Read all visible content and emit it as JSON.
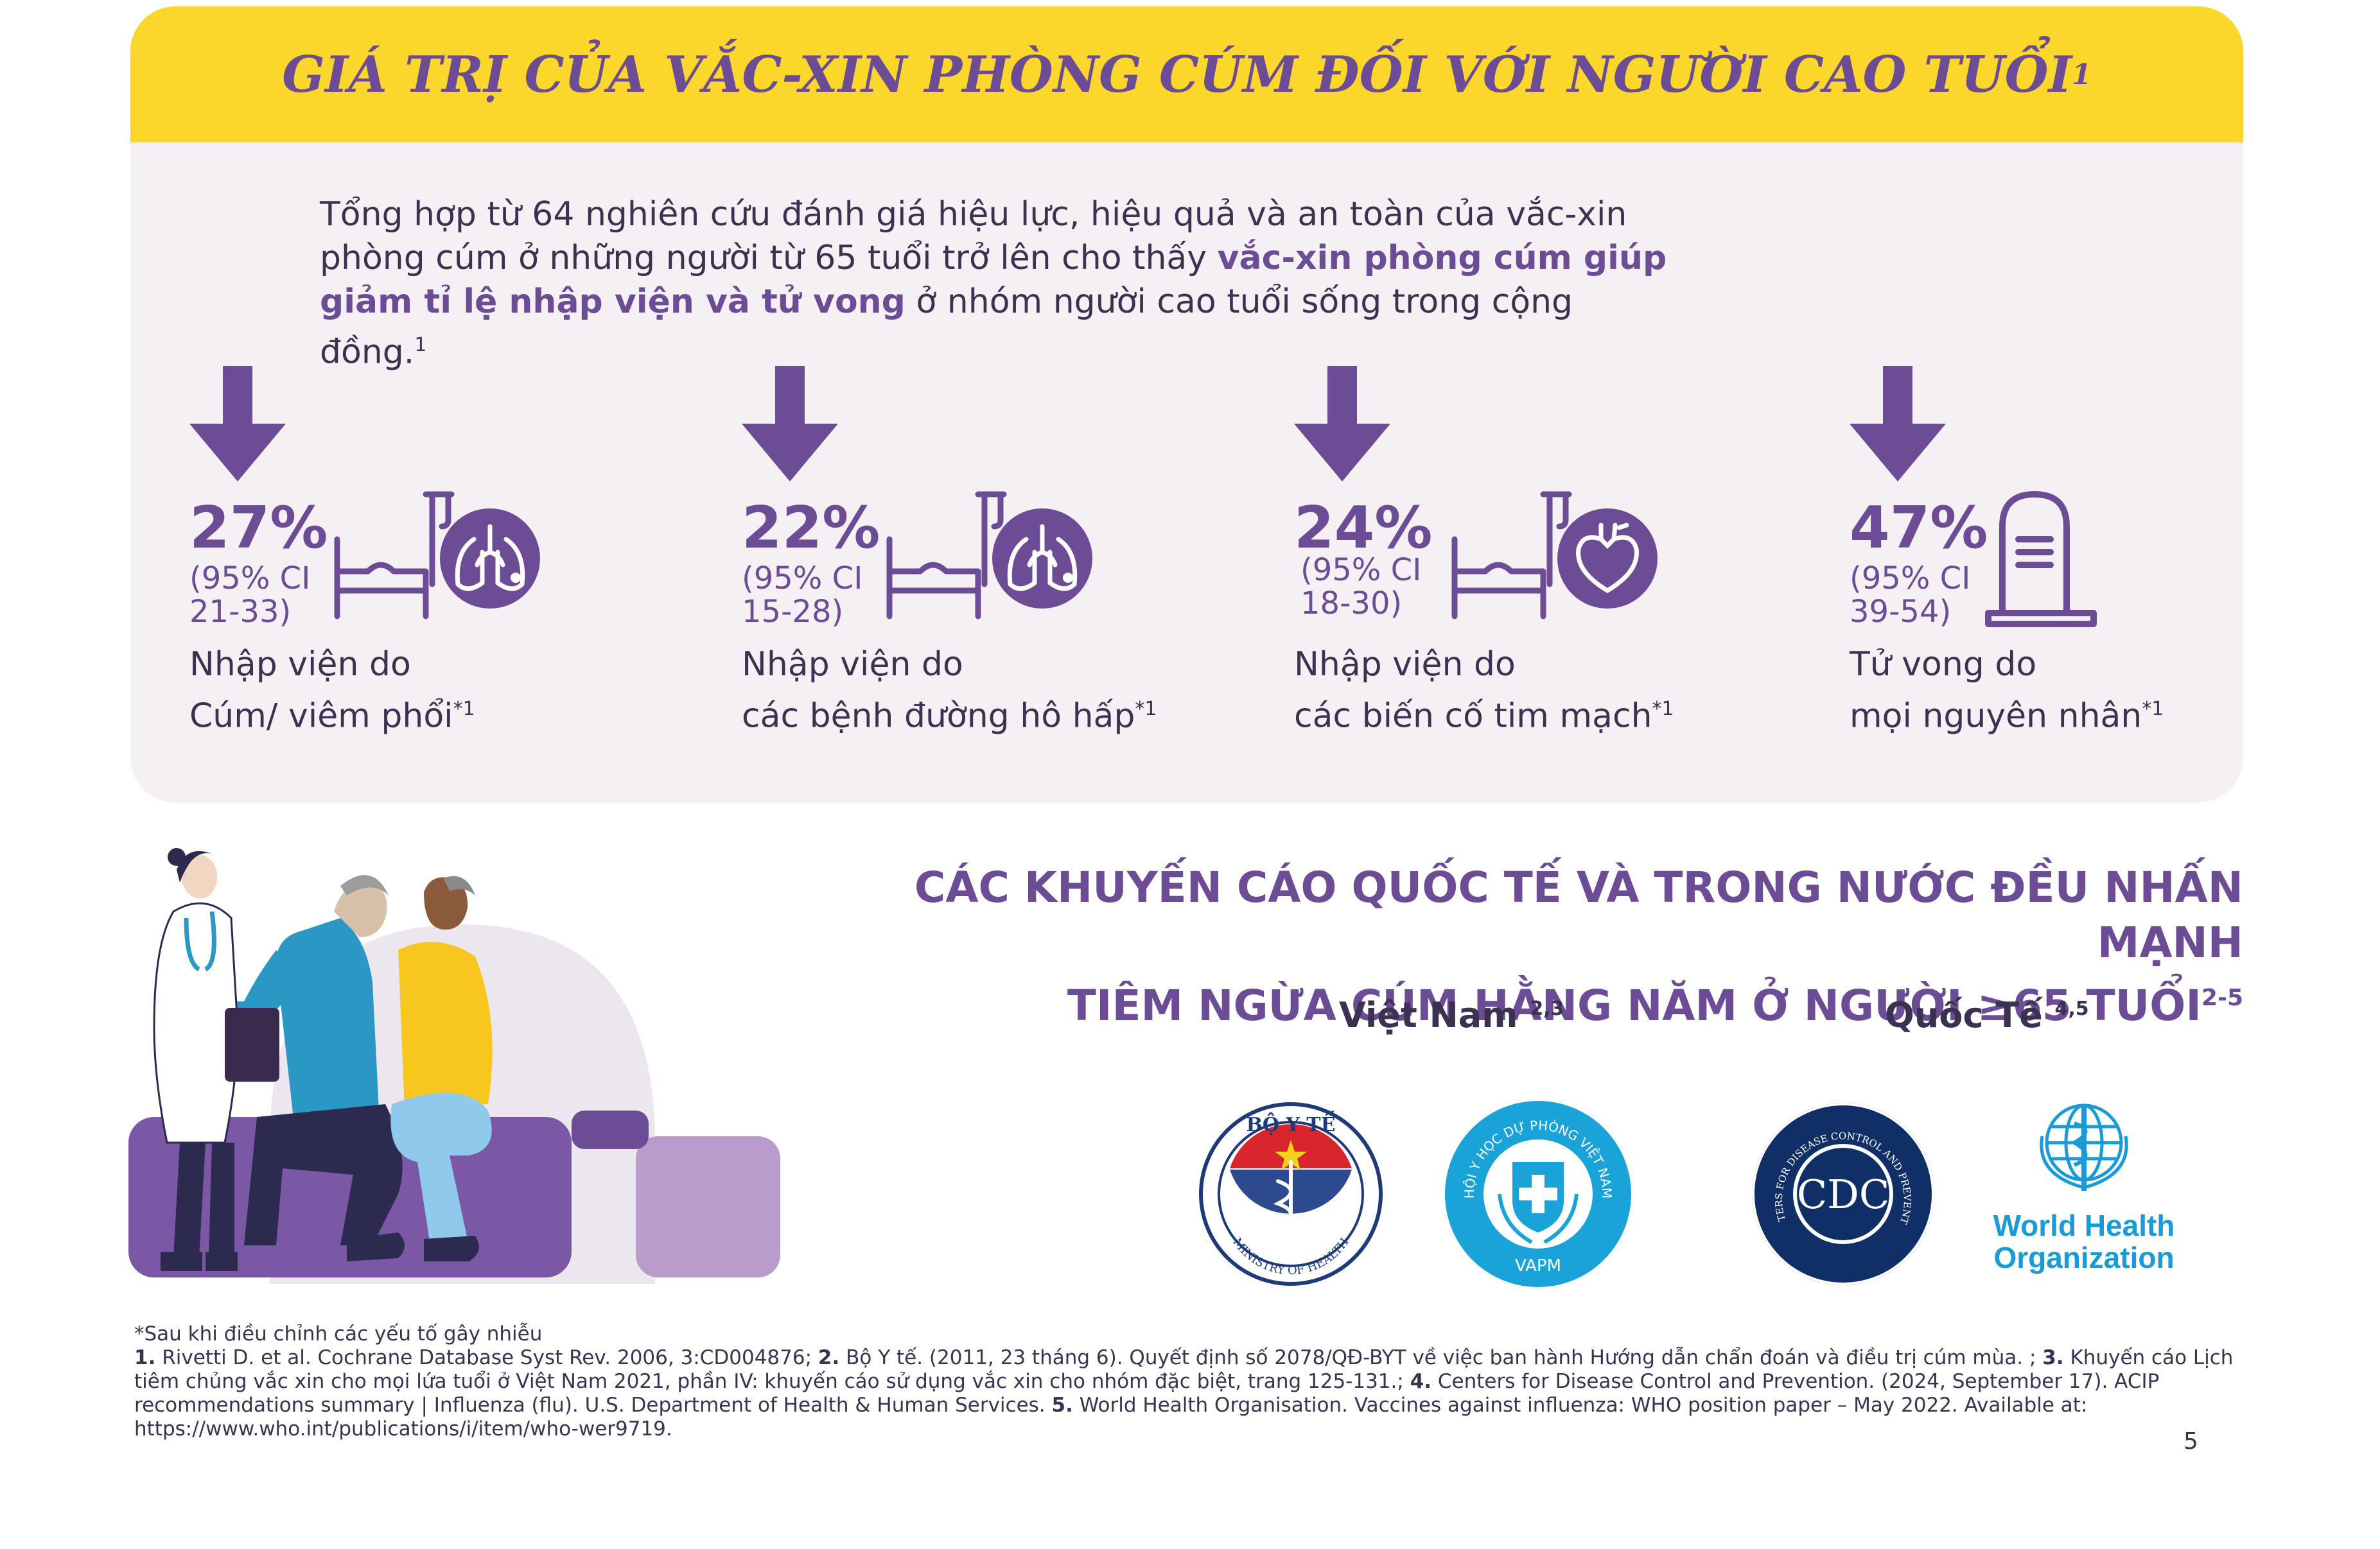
{
  "header": {
    "title": "GIÁ TRỊ CỦA VẮC-XIN PHÒNG CÚM ĐỐI VỚI NGƯỜI CAO TUỔI",
    "title_sup": "1"
  },
  "intro": {
    "text_start": "Tổng hợp từ 64 nghiên cứu đánh giá hiệu lực, hiệu quả và an toàn của vắc-xin phòng cúm ở những người từ 65 tuổi trở lên cho thấy ",
    "highlight": "vắc-xin phòng cúm giúp giảm tỉ lệ nhập viện và tử vong",
    "text_end": " ở nhóm người cao tuổi sống trong cộng đồng.",
    "sup": "1"
  },
  "stats": [
    {
      "percent": "27%",
      "ci_line1": "(95% CI",
      "ci_line2": "21-33)",
      "label_line1": "Nhập viện do",
      "label_line2": "Cúm/ viêm phổi",
      "sup": "*1",
      "icon": "hospital-bed-lungs-icon"
    },
    {
      "percent": "22%",
      "ci_line1": "(95% CI",
      "ci_line2": "15-28)",
      "label_line1": "Nhập viện do",
      "label_line2": "các bệnh đường hô hấp",
      "sup": "*1",
      "icon": "hospital-bed-lungs-icon"
    },
    {
      "percent": "24%",
      "ci_line1": "(95% CI",
      "ci_line2": "18-30)",
      "label_line1": "Nhập viện do",
      "label_line2": "các biến cố tim mạch",
      "sup": "*1",
      "icon": "hospital-bed-heart-icon"
    },
    {
      "percent": "47%",
      "ci_line1": "(95% CI",
      "ci_line2": "39-54)",
      "label_line1": "Tử vong do",
      "label_line2": "mọi nguyên nhân",
      "sup": "*1",
      "icon": "tombstone-icon"
    }
  ],
  "recommendations": {
    "title_line1": "CÁC KHUYẾN CÁO QUỐC TẾ VÀ TRONG NƯỚC ĐỀU NHẤN MẠNH",
    "title_line2": "TIÊM NGỪA CÚM HẰNG NĂM Ở NGƯỜI ≥65 TUỔI",
    "title_sup": "2-5",
    "vietnam_label": "Việt Nam",
    "vietnam_sup": "2,3",
    "intl_label": "Quốc Tế",
    "intl_sup": "4,5",
    "logos": {
      "moh_top": "BỘ Y TẾ",
      "moh_bottom": "MINISTRY OF HEALTH",
      "vapm_arc": "HỘI Y HỌC DỰ PHÒNG VIỆT NAM",
      "vapm_bottom": "VAPM",
      "cdc_arc": "CENTERS FOR DISEASE CONTROL AND PREVENTION",
      "cdc_center": "CDC",
      "who_line1": "World Health",
      "who_line2": "Organization"
    }
  },
  "footnotes": {
    "adjusted": "*Sau khi điều chỉnh các yếu tố gây nhiễu",
    "ref1_num": "1.",
    "ref1": " Rivetti D. et al. Cochrane Database Syst Rev. 2006, 3:CD004876; ",
    "ref2_num": "2.",
    "ref2": " Bộ Y tế. (2011, 23 tháng 6). Quyết định số 2078/QĐ-BYT về việc ban hành Hướng dẫn chẩn đoán và điều trị cúm mùa. ; ",
    "ref3_num": "3.",
    "ref3": " Khuyến cáo Lịch tiêm chủng vắc xin cho mọi lứa tuổi ở Việt Nam 2021, phần IV: khuyến cáo sử dụng vắc xin cho nhóm đặc biệt, trang 125-131.; ",
    "ref4_num": "4.",
    "ref4": " Centers for Disease Control and Prevention. (2024, September 17). ACIP recommendations summary | Influenza (flu). U.S. Department of Health & Human Services. ",
    "ref5_num": "5.",
    "ref5": " World Health Organisation. Vaccines against influenza: WHO position paper – May 2022. Available at: https://www.who.int/publications/i/item/who-wer9719."
  },
  "page_number": "5",
  "colors": {
    "banner": "#fbd72b",
    "accent_purple": "#6c4c95",
    "panel_bg": "#f4f0f3",
    "text_dark": "#3a3250"
  }
}
